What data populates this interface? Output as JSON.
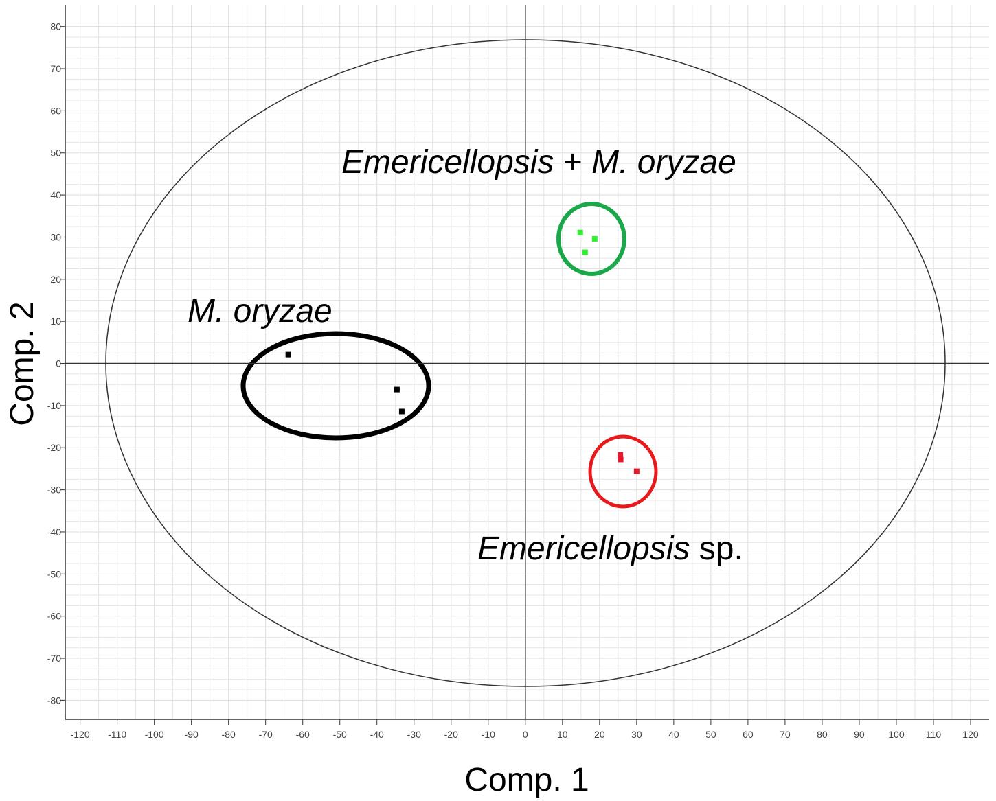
{
  "chart_data": {
    "type": "scatter",
    "xlabel": "Comp. 1",
    "ylabel": "Comp. 2",
    "xlim": [
      -124,
      125
    ],
    "ylim": [
      -84.5,
      85
    ],
    "xticks": [
      -120,
      -110,
      -100,
      -90,
      -80,
      -70,
      -60,
      -50,
      -40,
      -30,
      -20,
      -10,
      0,
      10,
      20,
      30,
      40,
      50,
      60,
      70,
      80,
      90,
      100,
      110,
      120
    ],
    "yticks": [
      -80,
      -70,
      -60,
      -50,
      -40,
      -30,
      -20,
      -10,
      0,
      10,
      20,
      30,
      40,
      50,
      60,
      70,
      80
    ],
    "grid": true,
    "series": [
      {
        "label_parts": [
          {
            "text": "M. oryzae",
            "italic": true
          }
        ],
        "color": "#000000",
        "x": [
          -63.9,
          -34.6,
          -33.3
        ],
        "values": [
          2.1,
          -6.2,
          -11.4
        ]
      },
      {
        "label_parts": [
          {
            "text": "Emericellopsis",
            "italic": true
          },
          {
            "text": "+",
            "italic": false
          },
          {
            "text": "M. oryzae",
            "italic": true
          }
        ],
        "color": "#33ee33",
        "x": [
          14.8,
          18.7,
          16.1
        ],
        "values": [
          31.1,
          29.6,
          26.4
        ]
      },
      {
        "label_parts": [
          {
            "text": "Emericellopsis",
            "italic": true
          },
          {
            "text": "sp.",
            "italic": false
          }
        ],
        "color": "#e8192c",
        "x": [
          25.6,
          25.7,
          30.0
        ],
        "values": [
          -21.7,
          -22.8,
          -25.6
        ]
      }
    ]
  }
}
